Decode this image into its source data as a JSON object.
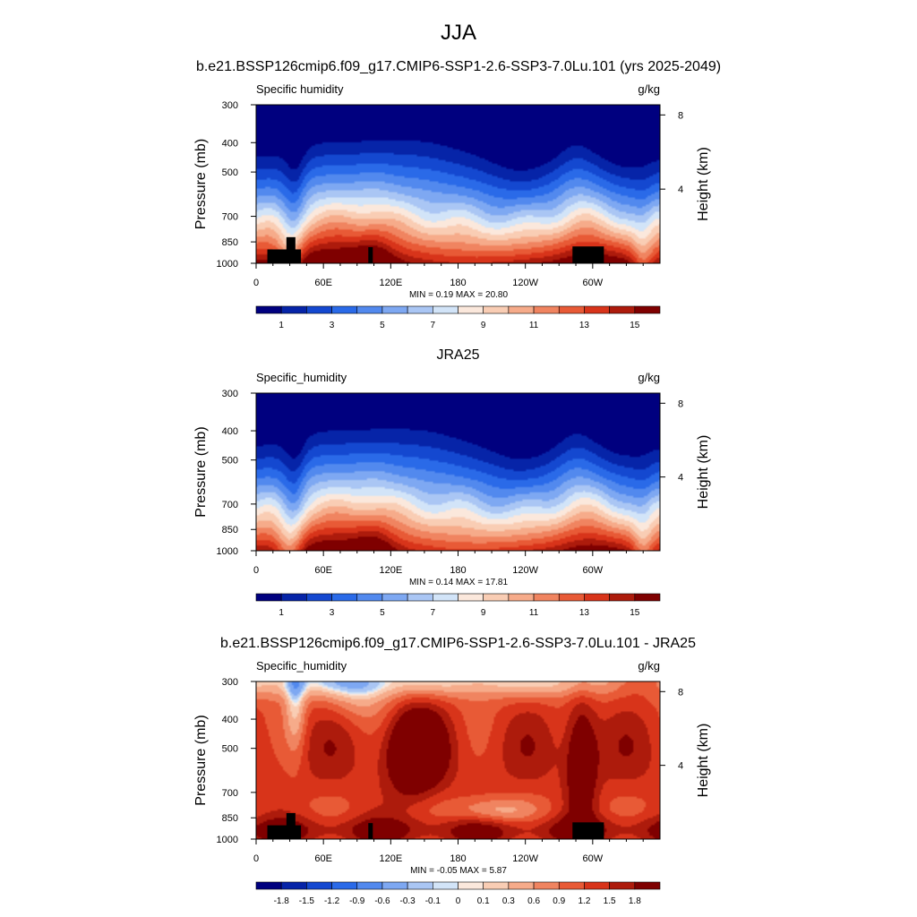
{
  "page": {
    "title": "JJA",
    "subtitle": "b.e21.BSSP126cmip6.f09_g17.CMIP6-SSP1-2.6-SSP3-7.0Lu.101 (yrs 2025-2049)"
  },
  "colors": {
    "absolute_scale": [
      "#00007f",
      "#0624a8",
      "#1448d0",
      "#2a6ae8",
      "#5289ee",
      "#7ea8f2",
      "#aac6f4",
      "#d2e4f8",
      "#fbe8dc",
      "#f9cdb4",
      "#f6ab8a",
      "#f08460",
      "#e85a36",
      "#d8341a",
      "#ad1b0c",
      "#7f0000"
    ],
    "difference_scale": [
      "#00007f",
      "#0624a8",
      "#1448d0",
      "#2a6ae8",
      "#5289ee",
      "#7ea8f2",
      "#aac6f4",
      "#d2e4f8",
      "#fbe8dc",
      "#f9cdb4",
      "#f6ab8a",
      "#f08460",
      "#e85a36",
      "#d8341a",
      "#ad1b0c",
      "#7f0000"
    ],
    "terrain": "#000000"
  },
  "chart_data": [
    {
      "type": "heatmap",
      "title": "",
      "left_label": "Specific humidity",
      "units": "g/kg",
      "ylabel": "Pressure (mb)",
      "ylabel_right": "Height (km)",
      "x_ticks": [
        "0",
        "60E",
        "120E",
        "180",
        "120W",
        "60W"
      ],
      "x_tick_values": [
        0,
        60,
        120,
        180,
        240,
        300
      ],
      "xlim": [
        0,
        360
      ],
      "y_ticks": [
        "300",
        "400",
        "500",
        "700",
        "850",
        "1000"
      ],
      "y_tick_values": [
        300,
        400,
        500,
        700,
        850,
        1000
      ],
      "ylim": [
        1000,
        300
      ],
      "y_scale": "log",
      "right_ticks": [
        "8",
        "4"
      ],
      "right_tick_values": [
        8,
        4
      ],
      "stats": "MIN =  0.19  MAX =  20.80",
      "min": 0.19,
      "max": 20.8,
      "colorbar_labels": [
        "1",
        "3",
        "5",
        "7",
        "9",
        "11",
        "13",
        "15"
      ],
      "colorbar_levels": [
        0,
        1,
        2,
        3,
        4,
        5,
        6,
        7,
        8,
        9,
        10,
        11,
        12,
        13,
        14,
        15
      ],
      "terrain": true
    },
    {
      "type": "heatmap",
      "title": "JRA25",
      "left_label": "Specific_humidity",
      "units": "g/kg",
      "ylabel": "Pressure (mb)",
      "ylabel_right": "Height (km)",
      "x_ticks": [
        "0",
        "60E",
        "120E",
        "180",
        "120W",
        "60W"
      ],
      "x_tick_values": [
        0,
        60,
        120,
        180,
        240,
        300
      ],
      "xlim": [
        0,
        360
      ],
      "y_ticks": [
        "300",
        "400",
        "500",
        "700",
        "850",
        "1000"
      ],
      "y_tick_values": [
        300,
        400,
        500,
        700,
        850,
        1000
      ],
      "ylim": [
        1000,
        300
      ],
      "y_scale": "log",
      "right_ticks": [
        "8",
        "4"
      ],
      "right_tick_values": [
        8,
        4
      ],
      "stats": "MIN =  0.14  MAX =  17.81",
      "min": 0.14,
      "max": 17.81,
      "colorbar_labels": [
        "1",
        "3",
        "5",
        "7",
        "9",
        "11",
        "13",
        "15"
      ],
      "colorbar_levels": [
        0,
        1,
        2,
        3,
        4,
        5,
        6,
        7,
        8,
        9,
        10,
        11,
        12,
        13,
        14,
        15
      ],
      "terrain": false
    },
    {
      "type": "heatmap",
      "title": "b.e21.BSSP126cmip6.f09_g17.CMIP6-SSP1-2.6-SSP3-7.0Lu.101 - JRA25",
      "left_label": "Specific_humidity",
      "units": "g/kg",
      "ylabel": "Pressure (mb)",
      "ylabel_right": "Height (km)",
      "x_ticks": [
        "0",
        "60E",
        "120E",
        "180",
        "120W",
        "60W"
      ],
      "x_tick_values": [
        0,
        60,
        120,
        180,
        240,
        300
      ],
      "xlim": [
        0,
        360
      ],
      "y_ticks": [
        "300",
        "400",
        "500",
        "700",
        "850",
        "1000"
      ],
      "y_tick_values": [
        300,
        400,
        500,
        700,
        850,
        1000
      ],
      "ylim": [
        1000,
        300
      ],
      "y_scale": "log",
      "right_ticks": [
        "8",
        "4"
      ],
      "right_tick_values": [
        8,
        4
      ],
      "stats": "MIN = -0.05  MAX =   5.87",
      "min": -0.05,
      "max": 5.87,
      "colorbar_labels": [
        "-1.8",
        "-1.5",
        "-1.2",
        "-0.9",
        "-0.6",
        "-0.3",
        "-0.1",
        "0",
        "0.1",
        "0.3",
        "0.6",
        "0.9",
        "1.2",
        "1.5",
        "1.8"
      ],
      "colorbar_levels": [
        -1.8,
        -1.5,
        -1.2,
        -0.9,
        -0.6,
        -0.3,
        -0.1,
        0,
        0.1,
        0.3,
        0.6,
        0.9,
        1.2,
        1.5,
        1.8
      ],
      "terrain": true
    }
  ]
}
